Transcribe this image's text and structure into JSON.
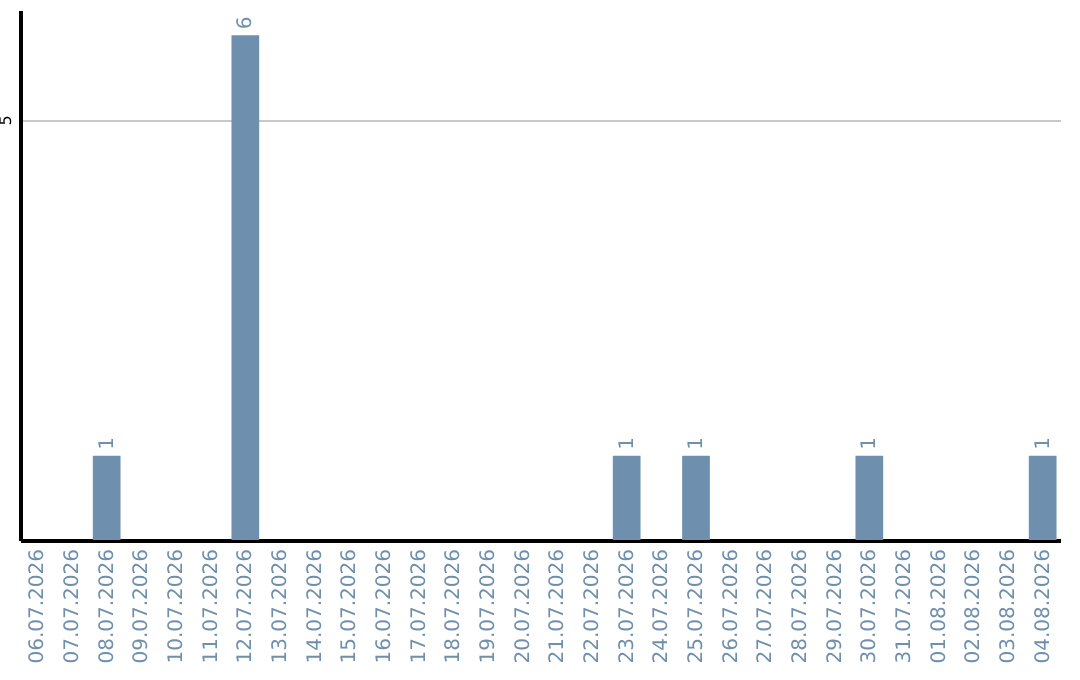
{
  "chart_data": {
    "type": "bar",
    "categories": [
      "06.07.2026",
      "07.07.2026",
      "08.07.2026",
      "09.07.2026",
      "10.07.2026",
      "11.07.2026",
      "12.07.2026",
      "13.07.2026",
      "14.07.2026",
      "15.07.2026",
      "16.07.2026",
      "17.07.2026",
      "18.07.2026",
      "19.07.2026",
      "20.07.2026",
      "21.07.2026",
      "22.07.2026",
      "23.07.2026",
      "24.07.2026",
      "25.07.2026",
      "26.07.2026",
      "27.07.2026",
      "28.07.2026",
      "29.07.2026",
      "30.07.2026",
      "31.07.2026",
      "01.08.2026",
      "02.08.2026",
      "03.08.2026",
      "04.08.2026"
    ],
    "values": [
      0,
      0,
      1,
      0,
      0,
      0,
      6,
      0,
      0,
      0,
      0,
      0,
      0,
      0,
      0,
      0,
      0,
      1,
      0,
      1,
      0,
      0,
      0,
      0,
      1,
      0,
      0,
      0,
      0,
      1
    ],
    "value_labels": [
      null,
      null,
      "1",
      null,
      null,
      null,
      "6",
      null,
      null,
      null,
      null,
      null,
      null,
      null,
      null,
      null,
      null,
      "1",
      null,
      "1",
      null,
      null,
      null,
      null,
      "1",
      null,
      null,
      null,
      null,
      "1"
    ],
    "color": "#6f8fae",
    "ylim": [
      0,
      6.3
    ],
    "yticks": [
      5
    ],
    "grid": "y"
  }
}
